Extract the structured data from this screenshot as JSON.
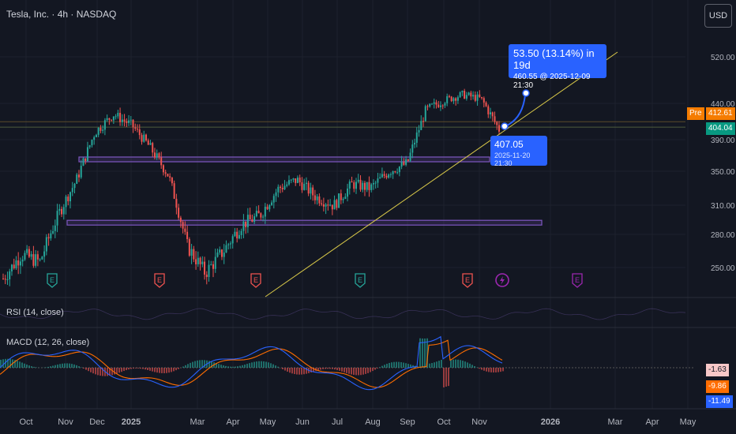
{
  "header": {
    "ticker_line": "Tesla, Inc. · 4h · NASDAQ",
    "currency_button": "USD"
  },
  "colors": {
    "up": "#26a69a",
    "down": "#ef5350",
    "trend": "#d9c949",
    "zone": "#7e57c2",
    "callout": "#2962ff",
    "pre": "#f57c00",
    "rsi": "#7e57c2",
    "macd": "#2962ff",
    "signal": "#ff6d00"
  },
  "price_axis": {
    "ticks": [
      "520.00",
      "440.00",
      "390.00",
      "350.00",
      "310.00",
      "280.00",
      "250.00"
    ]
  },
  "price_tags": {
    "pre_label": "Pre",
    "pre_value": "412.61",
    "last_value": "404.04"
  },
  "time_axis": {
    "labels": [
      "Oct",
      "Nov",
      "Dec",
      "2025",
      "Mar",
      "Apr",
      "May",
      "Jun",
      "Jul",
      "Aug",
      "Sep",
      "Oct",
      "Nov",
      "2026",
      "Mar",
      "Apr",
      "May"
    ]
  },
  "measure": {
    "line1": "53.50 (13.14%) in 19d",
    "line2": "460.55 @ 2025-12-09  21:30"
  },
  "anchor": {
    "price": "407.05",
    "datetime": "2025-11-20 21:30"
  },
  "events": [
    {
      "type": "earnings",
      "label": "E",
      "color": "#26a69a"
    },
    {
      "type": "earnings",
      "label": "E",
      "color": "#ef5350"
    },
    {
      "type": "earnings",
      "label": "E",
      "color": "#ef5350"
    },
    {
      "type": "earnings",
      "label": "E",
      "color": "#26a69a"
    },
    {
      "type": "earnings",
      "label": "E",
      "color": "#ef5350"
    },
    {
      "type": "dividend-split",
      "label": "",
      "color": "#9c27b0"
    },
    {
      "type": "earnings-upcoming",
      "label": "E",
      "color": "#9c27b0"
    }
  ],
  "rsi": {
    "label": "RSI (14, close)"
  },
  "macd": {
    "label": "MACD (12, 26, close)",
    "values": [
      "-1.63",
      "-9.86",
      "-11.49"
    ]
  },
  "chart_data": {
    "type": "line",
    "title": "Tesla, Inc. · 4h · NASDAQ",
    "xlabel": "",
    "ylabel": "",
    "ylim": [
      232,
      540
    ],
    "x": [
      "2024-10",
      "2024-10",
      "2024-11",
      "2024-11",
      "2024-12",
      "2024-12",
      "2025-01",
      "2025-01",
      "2025-02",
      "2025-02",
      "2025-03",
      "2025-03",
      "2025-04",
      "2025-04",
      "2025-05",
      "2025-05",
      "2025-06",
      "2025-06",
      "2025-07",
      "2025-07",
      "2025-08",
      "2025-08",
      "2025-09",
      "2025-09",
      "2025-10",
      "2025-10",
      "2025-11",
      "2025-11"
    ],
    "series": [
      {
        "values": [
          240,
          262,
          255,
          300,
          340,
          400,
          425,
          410,
          380,
          345,
          270,
          245,
          265,
          290,
          300,
          330,
          340,
          320,
          310,
          335,
          330,
          350,
          360,
          430,
          445,
          455,
          448,
          404
        ]
      }
    ],
    "levels": [
      365,
      292
    ],
    "trendline": {
      "from": {
        "x": "2025-05",
        "y": 232
      },
      "to": {
        "x": "2026-01",
        "y": 530
      }
    }
  }
}
